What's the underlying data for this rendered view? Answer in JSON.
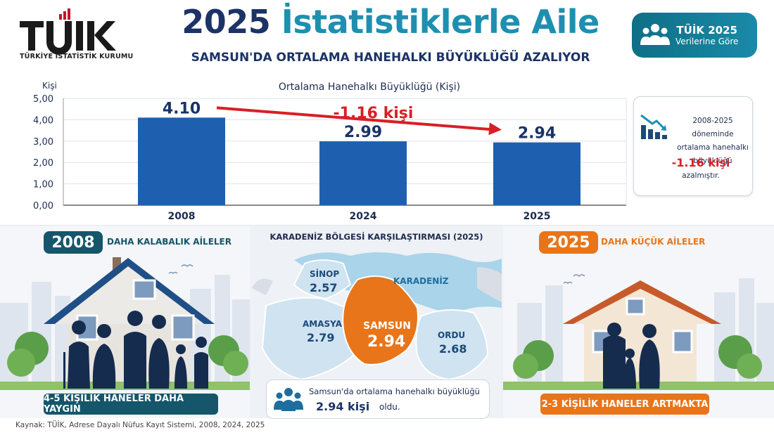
{
  "header": {
    "logo_text": "TÜİK",
    "logo_caption": "TÜRKİYE İSTATİSTİK KURUMU",
    "title_part1": "2025 ",
    "title_part2": "İstatistiklerle Aile",
    "subtitle": "SAMSUN'DA ORTALAMA HANEHALKI BÜYÜKLÜĞÜ AZALIYOR",
    "badge_line1": "TÜİK 2025",
    "badge_line2": "Verilerine Göre"
  },
  "chart_data": {
    "type": "bar",
    "title": "Ortalama Hanehalkı Büyüklüğü (Kişi)",
    "ylabel": "Kişi",
    "categories": [
      "2008",
      "2024",
      "2025"
    ],
    "values": [
      4.1,
      2.99,
      2.94
    ],
    "value_labels": [
      "4.10",
      "2.99",
      "2.94"
    ],
    "yticks": [
      "0,00",
      "1,00",
      "2,00",
      "3,00",
      "4,00",
      "5,00"
    ],
    "ylim": [
      0,
      5
    ],
    "grid": true,
    "annotation": "-1.16 kişi",
    "colors": {
      "bar": "#1f5fb0",
      "arrow": "#d81f26"
    }
  },
  "info_card": {
    "line1": "2008-2025 döneminde",
    "line2": "ortalama hanehalkı",
    "line3": "büyüklüğü",
    "value": "-1.16 kişi",
    "line4": "azalmıştır."
  },
  "left_panel": {
    "year": "2008",
    "caption": "DAHA KALABALIK AİLELER",
    "banner": "4-5 KİŞİLİK HANELER DAHA YAYGIN"
  },
  "middle_panel": {
    "title": "KARADENİZ BÖLGESİ KARŞILAŞTIRMASI (2025)",
    "sea_label": "KARADENİZ",
    "regions": [
      {
        "name": "SİNOP",
        "value": "2.57"
      },
      {
        "name": "AMASYA",
        "value": "2.79"
      },
      {
        "name": "SAMSUN",
        "value": "2.94"
      },
      {
        "name": "ORDU",
        "value": "2.68"
      }
    ],
    "box_line1": "Samsun'da ortalama hanehalkı büyüklüğü",
    "box_value": "2.94 kişi",
    "box_suffix": "oldu."
  },
  "right_panel": {
    "year": "2025",
    "caption": "DAHA KÜÇÜK AİLELER",
    "banner": "2-3 KİŞİLİK HANELER ARTMAKTA"
  },
  "source": "Kaynak: TÜİK, Adrese Dayalı Nüfus Kayıt Sistemi, 2008, 2024, 2025",
  "colors": {
    "navy": "#1b3366",
    "teal": "#15566b",
    "orange": "#e8751a",
    "red": "#d81f26"
  }
}
